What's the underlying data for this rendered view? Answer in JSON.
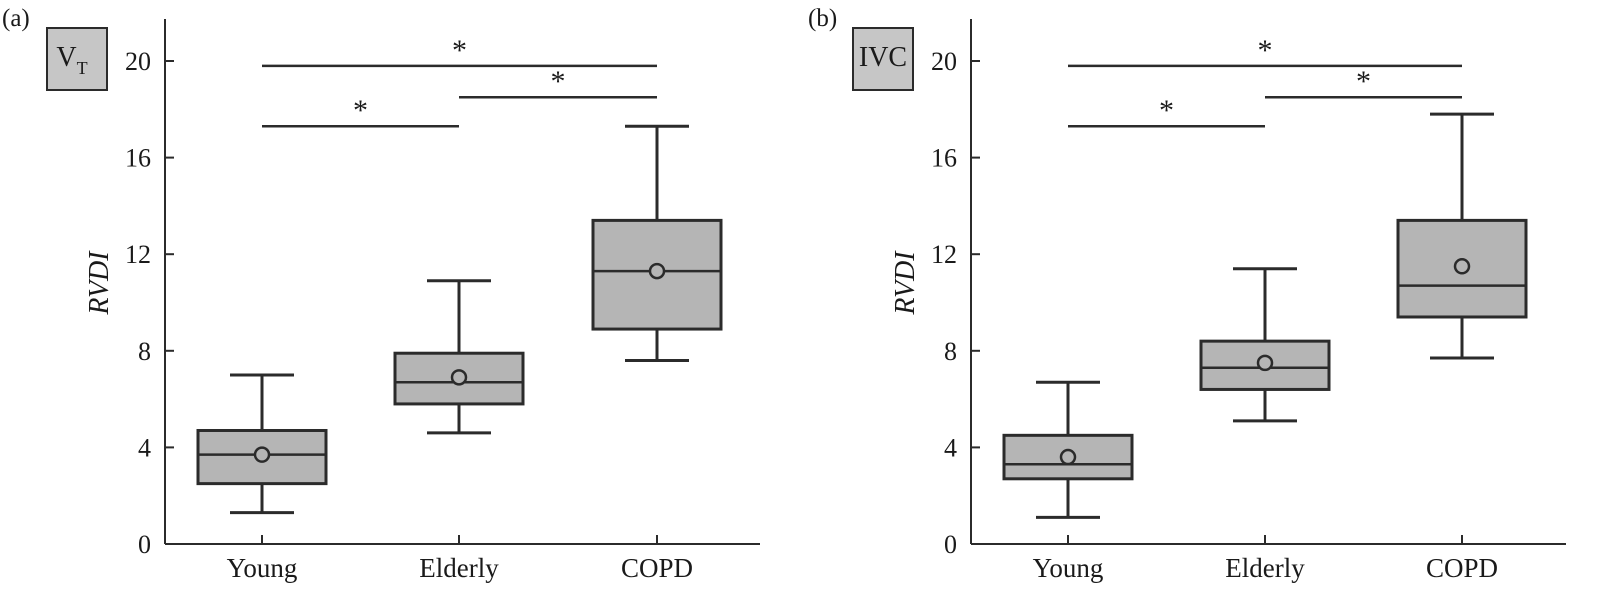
{
  "chart_data": [
    {
      "type": "box",
      "panel": "(a)",
      "badge": "V",
      "badge_sub": "T",
      "ylabel": "RVDI",
      "ylim": [
        0,
        21.5
      ],
      "yticks": [
        0,
        4,
        8,
        12,
        16,
        20
      ],
      "categories": [
        "Young",
        "Elderly",
        "COPD"
      ],
      "boxes": [
        {
          "category": "Young",
          "whisker_low": 1.3,
          "q1": 2.5,
          "median": 3.7,
          "q3": 4.7,
          "whisker_high": 7.0,
          "mean": 3.7
        },
        {
          "category": "Elderly",
          "whisker_low": 4.6,
          "q1": 5.8,
          "median": 6.7,
          "q3": 7.9,
          "whisker_high": 10.9,
          "mean": 6.9
        },
        {
          "category": "COPD",
          "whisker_low": 7.6,
          "q1": 8.9,
          "median": 11.3,
          "q3": 13.4,
          "whisker_high": 17.3,
          "mean": 11.3
        }
      ],
      "significance": [
        {
          "from": "Young",
          "to": "Elderly",
          "label": "*",
          "y": 17.3
        },
        {
          "from": "Elderly",
          "to": "COPD",
          "label": "*",
          "y": 18.5
        },
        {
          "from": "Young",
          "to": "COPD",
          "label": "*",
          "y": 19.8
        }
      ],
      "colors": {
        "box_fill": "#b5b5b5",
        "badge_fill": "#c6c6c6",
        "line": "#2b2b2b"
      }
    },
    {
      "type": "box",
      "panel": "(b)",
      "badge": "IVC",
      "badge_sub": "",
      "ylabel": "RVDI",
      "ylim": [
        0,
        21.5
      ],
      "yticks": [
        0,
        4,
        8,
        12,
        16,
        20
      ],
      "categories": [
        "Young",
        "Elderly",
        "COPD"
      ],
      "boxes": [
        {
          "category": "Young",
          "whisker_low": 1.1,
          "q1": 2.7,
          "median": 3.3,
          "q3": 4.5,
          "whisker_high": 6.7,
          "mean": 3.6
        },
        {
          "category": "Elderly",
          "whisker_low": 5.1,
          "q1": 6.4,
          "median": 7.3,
          "q3": 8.4,
          "whisker_high": 11.4,
          "mean": 7.5
        },
        {
          "category": "COPD",
          "whisker_low": 7.7,
          "q1": 9.4,
          "median": 10.7,
          "q3": 13.4,
          "whisker_high": 17.8,
          "mean": 11.5
        }
      ],
      "significance": [
        {
          "from": "Young",
          "to": "Elderly",
          "label": "*",
          "y": 17.3
        },
        {
          "from": "Elderly",
          "to": "COPD",
          "label": "*",
          "y": 18.5
        },
        {
          "from": "Young",
          "to": "COPD",
          "label": "*",
          "y": 19.8
        }
      ],
      "colors": {
        "box_fill": "#b5b5b5",
        "badge_fill": "#c6c6c6",
        "line": "#2b2b2b"
      }
    }
  ]
}
